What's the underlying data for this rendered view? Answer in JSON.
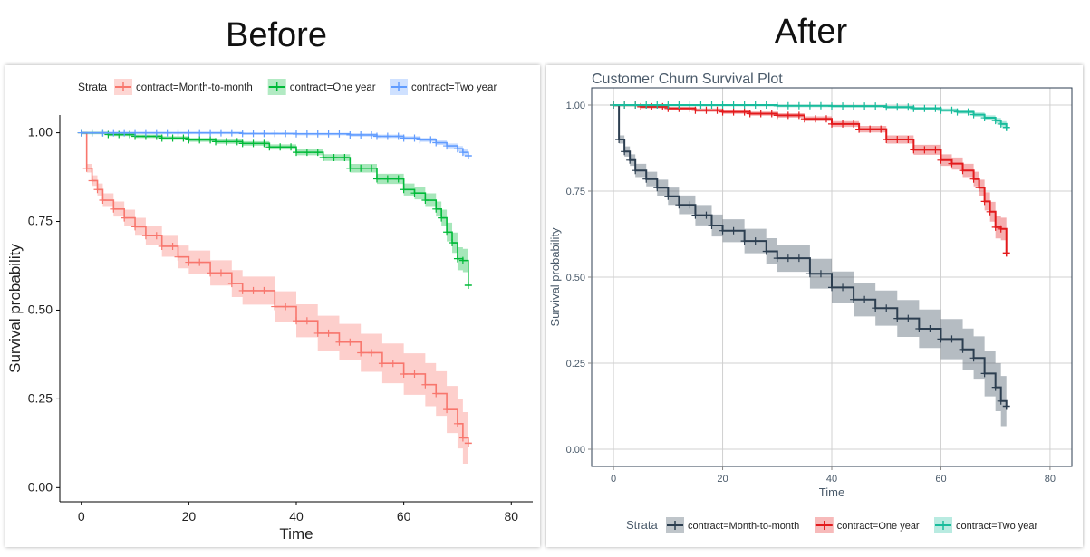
{
  "headings": {
    "before": "Before",
    "after": "After"
  },
  "colors": {
    "before": {
      "month": "#F8766D",
      "one": "#00BA38",
      "two": "#619CFF"
    },
    "after": {
      "month": "#2C3E50",
      "one": "#E31A1C",
      "two": "#18BC9C"
    },
    "after_axis_text": "#4A5A6A",
    "after_grid": "#D0D0D0"
  },
  "chart_data": [
    {
      "type": "line",
      "panel": "before",
      "title": "",
      "xlabel": "Time",
      "ylabel": "Survival probability",
      "xlim": [
        -4,
        84
      ],
      "ylim": [
        -0.04,
        1.05
      ],
      "xticks": [
        0,
        20,
        40,
        60,
        80
      ],
      "yticks": [
        0.0,
        0.25,
        0.5,
        0.75,
        1.0
      ],
      "ytick_labels": [
        "0.00",
        "0.25",
        "0.50",
        "0.75",
        "1.00"
      ],
      "grid": false,
      "legend": {
        "title": "Strata",
        "placement": "top"
      },
      "series": [
        {
          "name": "contract=Month-to-month",
          "x": [
            0,
            1,
            2,
            3,
            4,
            6,
            8,
            10,
            12,
            15,
            18,
            20,
            24,
            28,
            30,
            36,
            40,
            44,
            48,
            52,
            56,
            60,
            64,
            66,
            68,
            70,
            71,
            72
          ],
          "y": [
            1.0,
            0.9,
            0.865,
            0.84,
            0.81,
            0.785,
            0.76,
            0.735,
            0.71,
            0.68,
            0.65,
            0.635,
            0.605,
            0.575,
            0.555,
            0.51,
            0.47,
            0.435,
            0.41,
            0.38,
            0.35,
            0.32,
            0.29,
            0.265,
            0.22,
            0.18,
            0.14,
            0.125
          ]
        },
        {
          "name": "contract=One year",
          "x": [
            0,
            5,
            10,
            15,
            20,
            25,
            30,
            35,
            40,
            45,
            50,
            55,
            60,
            62,
            64,
            66,
            67,
            68,
            69,
            70,
            71,
            72
          ],
          "y": [
            1.0,
            0.995,
            0.99,
            0.985,
            0.98,
            0.975,
            0.97,
            0.96,
            0.945,
            0.93,
            0.9,
            0.87,
            0.84,
            0.83,
            0.81,
            0.785,
            0.76,
            0.72,
            0.69,
            0.645,
            0.64,
            0.57
          ]
        },
        {
          "name": "contract=Two year",
          "x": [
            0,
            10,
            20,
            30,
            40,
            50,
            55,
            60,
            63,
            66,
            68,
            70,
            71,
            72
          ],
          "y": [
            1.0,
            1.0,
            1.0,
            0.998,
            0.997,
            0.994,
            0.99,
            0.985,
            0.98,
            0.972,
            0.963,
            0.955,
            0.945,
            0.935
          ]
        }
      ]
    },
    {
      "type": "line",
      "panel": "after",
      "title": "Customer Churn Survival Plot",
      "xlabel": "Time",
      "ylabel": "Survival probability",
      "xlim": [
        -4,
        84
      ],
      "ylim": [
        -0.05,
        1.05
      ],
      "xticks": [
        0,
        20,
        40,
        60,
        80
      ],
      "yticks": [
        0.0,
        0.25,
        0.5,
        0.75,
        1.0
      ],
      "ytick_labels": [
        "0.00",
        "0.25",
        "0.50",
        "0.75",
        "1.00"
      ],
      "grid": true,
      "legend": {
        "title": "Strata",
        "placement": "bottom"
      },
      "series": [
        {
          "name": "contract=Month-to-month",
          "x": [
            0,
            1,
            2,
            3,
            4,
            6,
            8,
            10,
            12,
            15,
            18,
            20,
            24,
            28,
            30,
            36,
            40,
            44,
            48,
            52,
            56,
            60,
            64,
            66,
            68,
            70,
            71,
            72
          ],
          "y": [
            1.0,
            0.9,
            0.865,
            0.84,
            0.81,
            0.785,
            0.76,
            0.735,
            0.71,
            0.68,
            0.65,
            0.635,
            0.605,
            0.575,
            0.555,
            0.51,
            0.47,
            0.435,
            0.41,
            0.38,
            0.35,
            0.32,
            0.29,
            0.265,
            0.22,
            0.18,
            0.14,
            0.125
          ]
        },
        {
          "name": "contract=One year",
          "x": [
            0,
            5,
            10,
            15,
            20,
            25,
            30,
            35,
            40,
            45,
            50,
            55,
            60,
            62,
            64,
            66,
            67,
            68,
            69,
            70,
            71,
            72
          ],
          "y": [
            1.0,
            0.995,
            0.99,
            0.985,
            0.98,
            0.975,
            0.97,
            0.96,
            0.945,
            0.93,
            0.9,
            0.87,
            0.84,
            0.83,
            0.81,
            0.785,
            0.76,
            0.72,
            0.69,
            0.645,
            0.64,
            0.57
          ]
        },
        {
          "name": "contract=Two year",
          "x": [
            0,
            10,
            20,
            30,
            40,
            50,
            55,
            60,
            63,
            66,
            68,
            70,
            71,
            72
          ],
          "y": [
            1.0,
            1.0,
            1.0,
            0.998,
            0.997,
            0.994,
            0.99,
            0.985,
            0.98,
            0.972,
            0.963,
            0.955,
            0.945,
            0.935
          ]
        }
      ]
    }
  ]
}
